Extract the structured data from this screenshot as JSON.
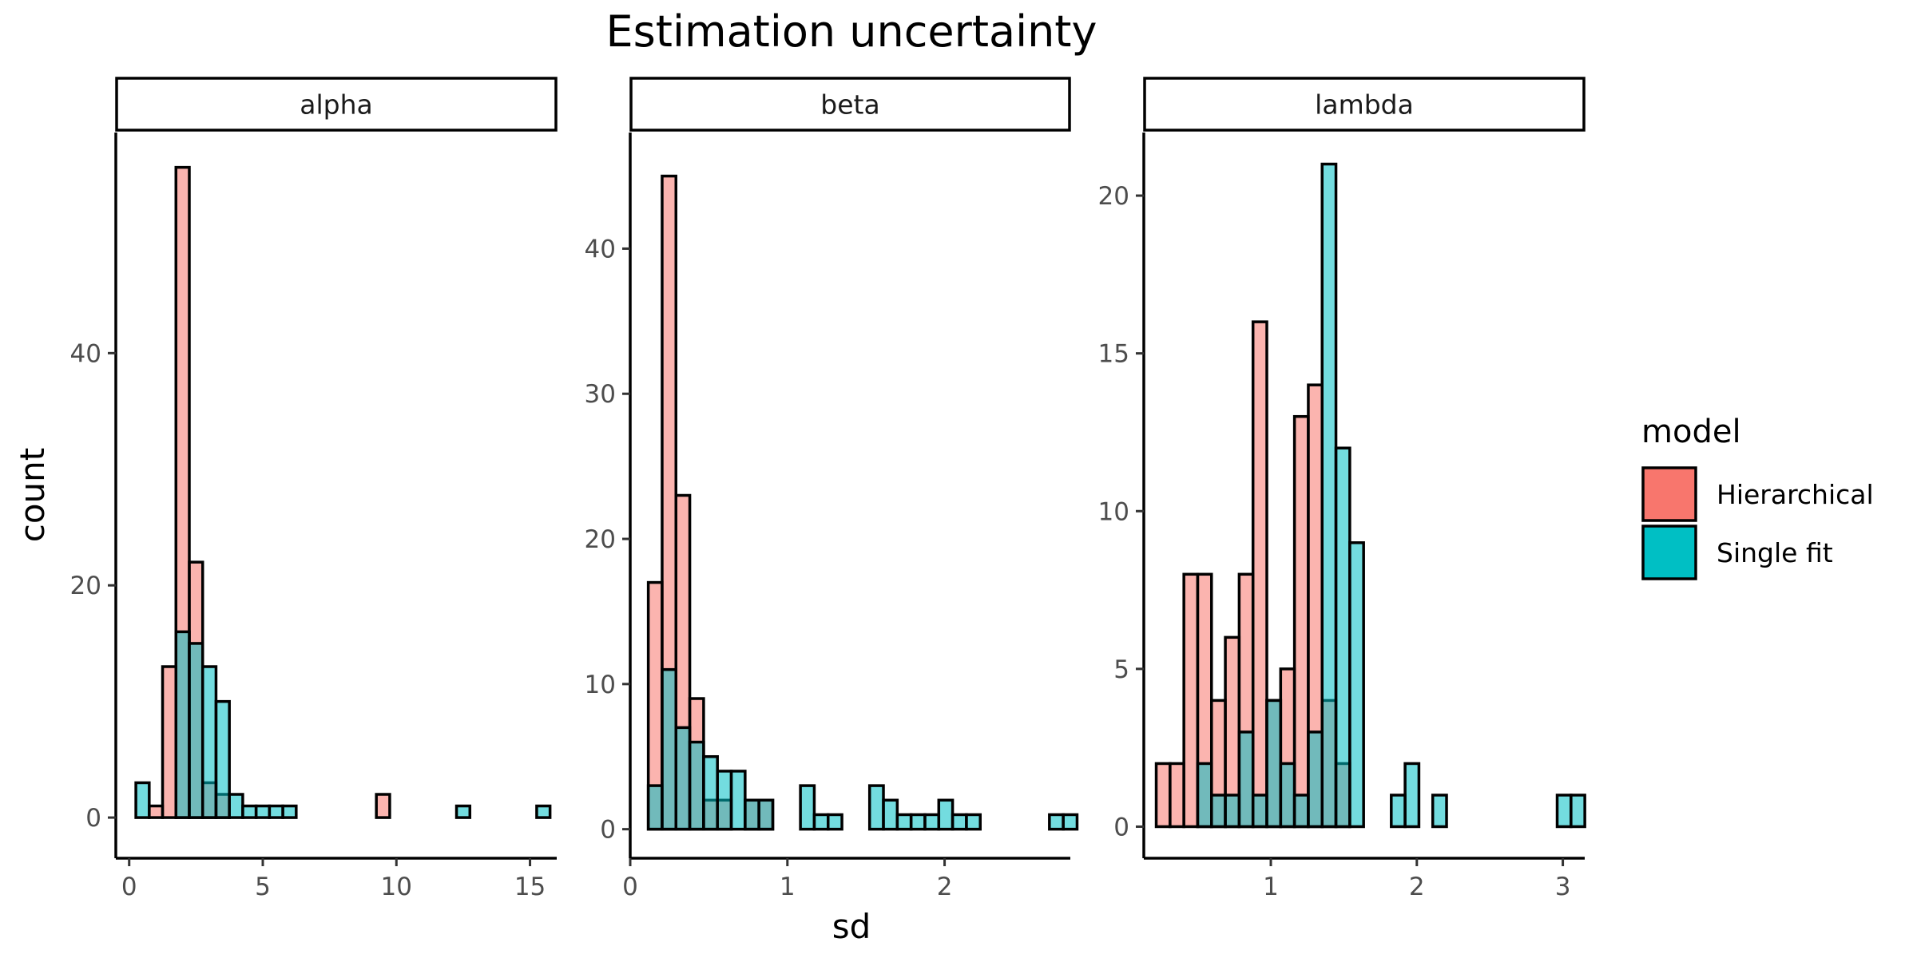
{
  "chart_data": {
    "type": "bar",
    "subtype": "overlaid histogram, faceted",
    "title": "Estimation uncertainty",
    "xlabel": "sd",
    "ylabel": "count",
    "legend": {
      "title": "model",
      "placement": "right",
      "entries": [
        {
          "name": "Hierarchical",
          "color": "#F8766D"
        },
        {
          "name": "Single fit",
          "color": "#00BFC4"
        }
      ]
    },
    "grid": false,
    "bar_opacity": 0.55,
    "facets": [
      {
        "label": "alpha",
        "xlim": [
          -0.5,
          16
        ],
        "ylim": [
          -3.5,
          59
        ],
        "xticks": [
          0,
          5,
          10,
          15
        ],
        "yticks": [
          0,
          20,
          40
        ],
        "bin_start": 0.25,
        "bin_width": 0.5,
        "series": [
          {
            "name": "Hierarchical",
            "values": [
              0,
              1,
              13,
              56,
              22,
              3,
              2,
              0,
              0,
              0,
              0,
              0,
              0,
              0,
              0,
              0,
              0,
              0,
              2,
              0,
              0,
              0,
              0,
              0,
              0,
              0,
              0,
              0,
              0,
              0,
              0
            ]
          },
          {
            "name": "Single fit",
            "values": [
              3,
              0,
              0,
              16,
              15,
              13,
              10,
              2,
              1,
              1,
              1,
              1,
              0,
              0,
              0,
              0,
              0,
              0,
              0,
              0,
              0,
              0,
              0,
              0,
              1,
              0,
              0,
              0,
              0,
              0,
              1
            ]
          }
        ]
      },
      {
        "label": "beta",
        "xlim": [
          0,
          2.8
        ],
        "ylim": [
          -2,
          48
        ],
        "xticks": [
          0,
          1,
          2
        ],
        "yticks": [
          0,
          10,
          20,
          30,
          40
        ],
        "bin_start": 0.115,
        "bin_width": 0.088,
        "series": [
          {
            "name": "Hierarchical",
            "values": [
              17,
              45,
              23,
              9,
              2,
              2,
              0,
              2,
              2,
              0,
              0,
              0,
              0,
              0,
              0,
              0,
              0,
              0,
              0,
              0,
              0,
              0,
              0,
              0,
              0,
              0,
              0,
              0,
              0,
              0
            ]
          },
          {
            "name": "Single fit",
            "values": [
              3,
              11,
              7,
              6,
              5,
              4,
              4,
              2,
              2,
              0,
              0,
              3,
              1,
              1,
              0,
              0,
              3,
              2,
              1,
              1,
              1,
              2,
              1,
              1,
              0,
              0,
              0,
              0,
              0,
              1,
              1
            ]
          }
        ]
      },
      {
        "label": "lambda",
        "xlim": [
          0.13,
          3.15
        ],
        "ylim": [
          -1.0,
          22.0
        ],
        "xticks": [
          1,
          2,
          3
        ],
        "yticks": [
          0,
          5,
          10,
          15,
          20
        ],
        "bin_start": 0.215,
        "bin_width": 0.0947,
        "series": [
          {
            "name": "Hierarchical",
            "values": [
              2,
              2,
              8,
              8,
              4,
              6,
              8,
              16,
              4,
              5,
              13,
              14,
              4,
              2,
              0,
              0,
              0,
              0,
              0,
              0,
              0,
              0,
              0,
              0,
              0,
              0,
              0,
              0,
              0,
              0
            ]
          },
          {
            "name": "Single fit",
            "values": [
              0,
              0,
              0,
              2,
              1,
              1,
              3,
              1,
              4,
              2,
              1,
              3,
              21,
              12,
              9,
              0,
              0,
              1,
              2,
              0,
              1,
              0,
              0,
              0,
              0,
              0,
              0,
              0,
              0,
              1,
              1
            ]
          }
        ]
      }
    ]
  }
}
